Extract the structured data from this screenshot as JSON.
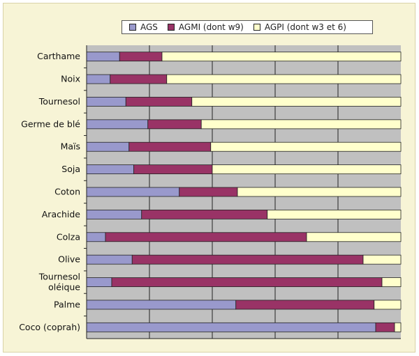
{
  "chart_data": {
    "type": "bar",
    "orientation": "horizontal",
    "stacked": true,
    "normalized": true,
    "categories": [
      "Carthame",
      "Noix",
      "Tournesol",
      "Germe de blé",
      "Maïs",
      "Soja",
      "Coton",
      "Arachide",
      "Colza",
      "Olive",
      "Tournesol oléique",
      "Palme",
      "Coco (coprah)"
    ],
    "series": [
      {
        "name": "AGS",
        "color": "#9999cc",
        "values": [
          10.5,
          7.5,
          12.5,
          19.5,
          13.5,
          15,
          29.5,
          17.5,
          6,
          14.5,
          8,
          47.5,
          92
        ]
      },
      {
        "name": "AGMI (dont w9)",
        "color": "#993366",
        "values": [
          13.5,
          18,
          21,
          17,
          26,
          25,
          18.5,
          40,
          64,
          73.5,
          86,
          44,
          6
        ]
      },
      {
        "name": "AGPI (dont w3 et 6)",
        "color": "#ffffcc",
        "values": [
          76,
          74.5,
          66.5,
          63.5,
          60.5,
          60,
          52,
          42.5,
          30,
          12,
          6,
          8.5,
          2
        ]
      }
    ],
    "xlim": [
      0,
      100
    ],
    "grid": true,
    "legend_position": "top"
  }
}
